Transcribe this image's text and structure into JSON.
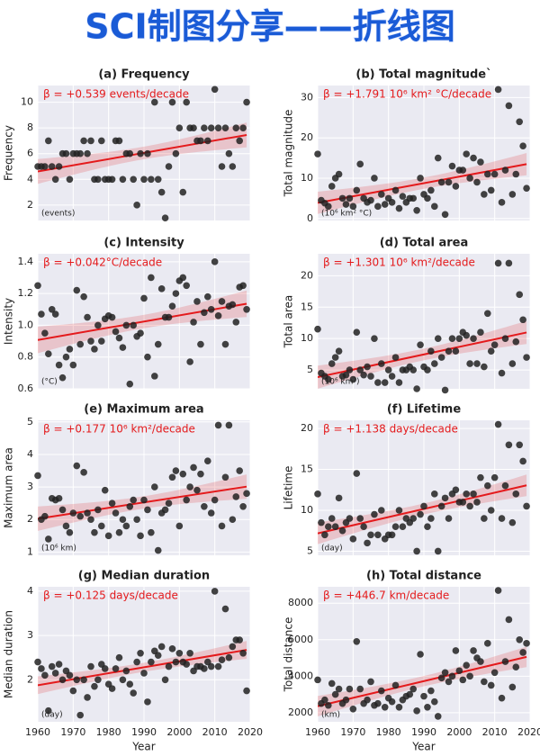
{
  "title": "SCI制图分享——折线图",
  "chart_data": [
    {
      "type": "scatter",
      "title": "(a) Frequency",
      "ylabel": "Frequency",
      "annotation": "β = +0.539 events/decade",
      "unit_note": "(events)",
      "show_xtick_labels": false,
      "color": "#222222",
      "fit_color": "#e41a1c",
      "grid": true,
      "x": [
        1960,
        1961,
        1962,
        1963,
        1964,
        1965,
        1966,
        1967,
        1968,
        1969,
        1970,
        1971,
        1972,
        1973,
        1974,
        1975,
        1976,
        1977,
        1978,
        1979,
        1980,
        1981,
        1982,
        1983,
        1984,
        1985,
        1986,
        1987,
        1988,
        1989,
        1990,
        1991,
        1992,
        1993,
        1994,
        1995,
        1996,
        1997,
        1998,
        1999,
        2000,
        2001,
        2002,
        2003,
        2004,
        2005,
        2006,
        2007,
        2008,
        2009,
        2010,
        2011,
        2012,
        2013,
        2014,
        2015,
        2016,
        2017,
        2018,
        2019
      ],
      "values": [
        5,
        5,
        5,
        7,
        5,
        4,
        5,
        6,
        6,
        4,
        6,
        6,
        6,
        7,
        6,
        7,
        4,
        4,
        7,
        4,
        4,
        4,
        7,
        7,
        4,
        6,
        6,
        4,
        2,
        6,
        4,
        6,
        4,
        10,
        4,
        3,
        1,
        5,
        10,
        6,
        8,
        3,
        10,
        8,
        8,
        7,
        7,
        8,
        7,
        8,
        11,
        8,
        5,
        8,
        6,
        5,
        8,
        7,
        8,
        10
      ],
      "xlim": [
        1960,
        2020
      ],
      "xticks": [
        1960,
        1970,
        1980,
        1990,
        2000,
        2010,
        2020
      ],
      "ylim": [
        0.8,
        11.3
      ],
      "yticks": [
        2,
        4,
        6,
        8,
        10
      ]
    },
    {
      "type": "scatter",
      "title": "(b) Total magnitude`",
      "ylabel": "Total magnitude",
      "annotation": "β = +1.791 10⁶ km² °C/decade",
      "unit_note": "(10⁶ km² °C)",
      "show_xtick_labels": false,
      "color": "#222222",
      "fit_color": "#e41a1c",
      "grid": true,
      "x": [
        1960,
        1961,
        1962,
        1963,
        1964,
        1965,
        1966,
        1967,
        1968,
        1969,
        1970,
        1971,
        1972,
        1973,
        1974,
        1975,
        1976,
        1977,
        1978,
        1979,
        1980,
        1981,
        1982,
        1983,
        1984,
        1985,
        1986,
        1987,
        1988,
        1989,
        1990,
        1991,
        1992,
        1993,
        1994,
        1995,
        1996,
        1997,
        1998,
        1999,
        2000,
        2001,
        2002,
        2003,
        2004,
        2005,
        2006,
        2007,
        2008,
        2009,
        2010,
        2011,
        2012,
        2013,
        2014,
        2015,
        2016,
        2017,
        2018,
        2019
      ],
      "values": [
        16,
        4.5,
        3.8,
        3,
        8,
        10,
        11,
        5,
        3.5,
        5,
        3,
        7,
        13.5,
        5,
        4,
        4.5,
        10,
        3,
        6,
        3.5,
        5,
        4,
        7,
        2.5,
        5.5,
        4,
        5,
        5,
        2,
        10,
        6,
        5,
        7,
        3,
        15,
        9,
        1,
        9,
        13,
        8,
        12,
        12,
        16,
        10,
        15,
        9,
        14,
        6,
        11,
        7,
        11,
        32,
        4,
        12,
        28,
        6,
        11,
        24,
        18,
        7.5
      ],
      "xlim": [
        1960,
        2020
      ],
      "xticks": [
        1960,
        1970,
        1980,
        1990,
        2000,
        2010,
        2020
      ],
      "ylim": [
        -0.5,
        33
      ],
      "yticks": [
        0,
        10,
        20,
        30
      ]
    },
    {
      "type": "scatter",
      "title": "(c) Intensity",
      "ylabel": "Intensity",
      "annotation": "β = +0.042°C/decade",
      "unit_note": "(°C)",
      "show_xtick_labels": false,
      "color": "#222222",
      "fit_color": "#e41a1c",
      "grid": true,
      "x": [
        1960,
        1961,
        1962,
        1963,
        1964,
        1965,
        1966,
        1967,
        1968,
        1969,
        1970,
        1971,
        1972,
        1973,
        1974,
        1975,
        1976,
        1977,
        1978,
        1979,
        1980,
        1981,
        1982,
        1983,
        1984,
        1985,
        1986,
        1987,
        1988,
        1989,
        1990,
        1991,
        1992,
        1993,
        1994,
        1995,
        1996,
        1997,
        1998,
        1999,
        2000,
        2001,
        2002,
        2003,
        2004,
        2005,
        2006,
        2007,
        2008,
        2009,
        2010,
        2011,
        2012,
        2013,
        2014,
        2015,
        2016,
        2017,
        2018,
        2019
      ],
      "values": [
        1.25,
        1.07,
        0.95,
        0.82,
        1.1,
        1.07,
        0.75,
        0.67,
        0.8,
        0.85,
        0.75,
        1.22,
        0.88,
        1.18,
        1.05,
        0.9,
        0.85,
        1.0,
        0.9,
        1.04,
        1.06,
        1.05,
        0.96,
        0.92,
        0.86,
        1.0,
        0.63,
        1.0,
        0.93,
        0.95,
        1.17,
        0.8,
        1.3,
        0.68,
        0.88,
        1.23,
        1.05,
        1.05,
        1.12,
        1.2,
        1.28,
        1.3,
        1.25,
        0.77,
        1.02,
        1.15,
        0.88,
        1.08,
        1.18,
        1.1,
        1.4,
        1.06,
        1.15,
        0.88,
        1.12,
        1.13,
        1.02,
        1.24,
        1.25,
        1.1
      ],
      "xlim": [
        1960,
        2020
      ],
      "xticks": [
        1960,
        1970,
        1980,
        1990,
        2000,
        2010,
        2020
      ],
      "ylim": [
        0.6,
        1.45
      ],
      "yticks": [
        0.6,
        0.8,
        {
          "value": 1,
          "label": "1.0"
        },
        1.2,
        1.4
      ]
    },
    {
      "type": "scatter",
      "title": "(d) Total area",
      "ylabel": "Total area",
      "annotation": "β = +1.301 10⁶ km²/decade",
      "unit_note": "(10⁶ km²)",
      "show_xtick_labels": false,
      "color": "#222222",
      "fit_color": "#e41a1c",
      "grid": true,
      "x": [
        1960,
        1961,
        1962,
        1963,
        1964,
        1965,
        1966,
        1967,
        1968,
        1969,
        1970,
        1971,
        1972,
        1973,
        1974,
        1975,
        1976,
        1977,
        1978,
        1979,
        1980,
        1981,
        1982,
        1983,
        1984,
        1985,
        1986,
        1987,
        1988,
        1989,
        1990,
        1991,
        1992,
        1993,
        1994,
        1995,
        1996,
        1997,
        1998,
        1999,
        2000,
        2001,
        2002,
        2003,
        2004,
        2005,
        2006,
        2007,
        2008,
        2009,
        2010,
        2011,
        2012,
        2013,
        2014,
        2015,
        2016,
        2017,
        2018,
        2019
      ],
      "values": [
        11.5,
        4.5,
        4,
        3.5,
        6,
        7,
        8,
        4,
        4.2,
        5,
        3.5,
        11,
        5,
        4.2,
        5.5,
        4,
        10,
        3,
        6,
        3,
        5,
        4,
        7,
        3,
        5,
        5,
        5.5,
        5,
        2,
        9,
        5.5,
        5,
        8,
        6,
        10,
        7,
        1.8,
        8,
        10,
        8,
        10,
        11,
        10.5,
        6,
        10,
        6,
        11,
        5.5,
        14,
        8,
        9,
        22,
        4.5,
        10,
        22,
        6,
        9.5,
        17,
        13,
        7
      ],
      "xlim": [
        1960,
        2020
      ],
      "xticks": [
        1960,
        1970,
        1980,
        1990,
        2000,
        2010,
        2020
      ],
      "ylim": [
        2,
        23.5
      ],
      "yticks": [
        5,
        10,
        15,
        20
      ]
    },
    {
      "type": "scatter",
      "title": "(e) Maximum area",
      "ylabel": "Maximum area",
      "annotation": "β = +0.177 10⁶ km²/decade",
      "unit_note": "(10⁶ km)",
      "show_xtick_labels": false,
      "color": "#222222",
      "fit_color": "#e41a1c",
      "grid": true,
      "x": [
        1960,
        1961,
        1962,
        1963,
        1964,
        1965,
        1966,
        1967,
        1968,
        1969,
        1970,
        1971,
        1972,
        1973,
        1974,
        1975,
        1976,
        1977,
        1978,
        1979,
        1980,
        1981,
        1982,
        1983,
        1984,
        1985,
        1986,
        1987,
        1988,
        1989,
        1990,
        1991,
        1992,
        1993,
        1994,
        1995,
        1996,
        1997,
        1998,
        1999,
        2000,
        2001,
        2002,
        2003,
        2004,
        2005,
        2006,
        2007,
        2008,
        2009,
        2010,
        2011,
        2012,
        2013,
        2014,
        2015,
        2016,
        2017,
        2018,
        2019
      ],
      "values": [
        3.35,
        2,
        2.1,
        1.4,
        2.65,
        2.6,
        2.65,
        2.3,
        1.8,
        1.6,
        2.2,
        3.65,
        2.1,
        3.45,
        2.2,
        2.0,
        1.6,
        2.3,
        1.8,
        2.9,
        1.5,
        2.5,
        2.2,
        1.6,
        2.0,
        1.8,
        2.4,
        2.6,
        2.0,
        1.5,
        2.6,
        2.3,
        1.6,
        3.0,
        1.05,
        2.2,
        2.3,
        2.5,
        3.3,
        3.5,
        1.8,
        3.4,
        2.6,
        3.0,
        3.6,
        2.9,
        3.4,
        2.4,
        3.8,
        2.2,
        2.6,
        4.9,
        1.8,
        3.3,
        4.9,
        2.0,
        2.7,
        3.5,
        2.4,
        2.8
      ],
      "xlim": [
        1960,
        2020
      ],
      "xticks": [
        1960,
        1970,
        1980,
        1990,
        2000,
        2010,
        2020
      ],
      "ylim": [
        0.9,
        5.05
      ],
      "yticks": [
        1,
        2,
        3,
        4,
        5
      ]
    },
    {
      "type": "scatter",
      "title": "(f) Lifetime",
      "ylabel": "Lifetime",
      "annotation": "β = +1.138 days/decade",
      "unit_note": "(day)",
      "show_xtick_labels": false,
      "color": "#222222",
      "fit_color": "#e41a1c",
      "grid": true,
      "x": [
        1960,
        1961,
        1962,
        1963,
        1964,
        1965,
        1966,
        1967,
        1968,
        1969,
        1970,
        1971,
        1972,
        1973,
        1974,
        1975,
        1976,
        1977,
        1978,
        1979,
        1980,
        1981,
        1982,
        1983,
        1984,
        1985,
        1986,
        1987,
        1988,
        1989,
        1990,
        1991,
        1992,
        1993,
        1994,
        1995,
        1996,
        1997,
        1998,
        1999,
        2000,
        2001,
        2002,
        2003,
        2004,
        2005,
        2006,
        2007,
        2008,
        2009,
        2010,
        2011,
        2012,
        2013,
        2014,
        2015,
        2016,
        2017,
        2018,
        2019
      ],
      "values": [
        12,
        8.5,
        7,
        8,
        9,
        8,
        11.5,
        7.5,
        8.5,
        9,
        6.5,
        14.5,
        9,
        8,
        6,
        7,
        9.5,
        7,
        10,
        6.5,
        7,
        7,
        8,
        10,
        8,
        9,
        8.5,
        9,
        5,
        9.5,
        10.5,
        8,
        9,
        12,
        5,
        10.5,
        11.5,
        9,
        12,
        12.5,
        11,
        11,
        12,
        10.5,
        12,
        11,
        14,
        9,
        13,
        10,
        14,
        20.5,
        9,
        13,
        18,
        8.5,
        12,
        18,
        16,
        10.5
      ],
      "xlim": [
        1960,
        2020
      ],
      "xticks": [
        1960,
        1970,
        1980,
        1990,
        2000,
        2010,
        2020
      ],
      "ylim": [
        4.5,
        21
      ],
      "yticks": [
        5,
        10,
        15,
        20
      ]
    },
    {
      "type": "scatter",
      "title": "(g) Median duration",
      "ylabel": "Median duration",
      "xlabel": "Year",
      "annotation": "β = +0.125 days/decade",
      "unit_note": "(day)",
      "show_xtick_labels": true,
      "color": "#222222",
      "fit_color": "#e41a1c",
      "grid": true,
      "x": [
        1960,
        1961,
        1962,
        1963,
        1964,
        1965,
        1966,
        1967,
        1968,
        1969,
        1970,
        1971,
        1972,
        1973,
        1974,
        1975,
        1976,
        1977,
        1978,
        1979,
        1980,
        1981,
        1982,
        1983,
        1984,
        1985,
        1986,
        1987,
        1988,
        1989,
        1990,
        1991,
        1992,
        1993,
        1994,
        1995,
        1996,
        1997,
        1998,
        1999,
        2000,
        2001,
        2002,
        2003,
        2004,
        2005,
        2006,
        2007,
        2008,
        2009,
        2010,
        2011,
        2012,
        2013,
        2014,
        2015,
        2016,
        2017,
        2018,
        2019
      ],
      "values": [
        2.4,
        2.25,
        2.1,
        1.3,
        2.3,
        2.15,
        2.35,
        2.0,
        2.2,
        2.1,
        1.75,
        2.0,
        1.2,
        2.0,
        1.6,
        2.3,
        1.85,
        2.0,
        2.35,
        2.25,
        1.9,
        1.8,
        2.25,
        2.5,
        2.0,
        2.2,
        1.9,
        1.7,
        2.4,
        2.6,
        2.15,
        1.5,
        2.4,
        2.65,
        2.55,
        2.75,
        2.0,
        2.3,
        2.7,
        2.4,
        2.6,
        2.4,
        2.35,
        2.6,
        2.2,
        2.3,
        2.3,
        2.25,
        2.4,
        2.3,
        4.0,
        2.3,
        2.45,
        3.6,
        2.5,
        2.75,
        2.9,
        2.9,
        2.6,
        1.75
      ],
      "xlim": [
        1960,
        2020
      ],
      "xticks": [
        1960,
        1970,
        1980,
        1990,
        2000,
        2010,
        2020
      ],
      "ylim": [
        1.05,
        4.1
      ],
      "yticks": [
        2,
        3,
        4
      ]
    },
    {
      "type": "scatter",
      "title": "(h) Total distance",
      "ylabel": "Total distance",
      "xlabel": "Year",
      "annotation": "β = +446.7 km/decade",
      "unit_note": "(km)",
      "show_xtick_labels": true,
      "color": "#222222",
      "fit_color": "#e41a1c",
      "grid": true,
      "x": [
        1960,
        1961,
        1962,
        1963,
        1964,
        1965,
        1966,
        1967,
        1968,
        1969,
        1970,
        1971,
        1972,
        1973,
        1974,
        1975,
        1976,
        1977,
        1978,
        1979,
        1980,
        1981,
        1982,
        1983,
        1984,
        1985,
        1986,
        1987,
        1988,
        1989,
        1990,
        1991,
        1992,
        1993,
        1994,
        1995,
        1996,
        1997,
        1998,
        1999,
        2000,
        2001,
        2002,
        2003,
        2004,
        2005,
        2006,
        2007,
        2008,
        2009,
        2010,
        2011,
        2012,
        2013,
        2014,
        2015,
        2016,
        2017,
        2018,
        2019
      ],
      "values": [
        3800,
        2500,
        2700,
        2400,
        3600,
        3000,
        3300,
        2500,
        2700,
        3300,
        2200,
        5900,
        3300,
        2500,
        2700,
        3700,
        2400,
        2500,
        3200,
        2300,
        2800,
        2600,
        3500,
        2300,
        2700,
        2900,
        3000,
        3300,
        2100,
        5200,
        2900,
        2300,
        3200,
        2600,
        1800,
        3900,
        4200,
        3700,
        4000,
        5400,
        4300,
        3800,
        4600,
        4000,
        5400,
        5000,
        4800,
        3700,
        5800,
        3500,
        4200,
        8700,
        2800,
        4800,
        7100,
        3400,
        4500,
        6000,
        5300,
        5800
      ],
      "xlim": [
        1960,
        2020
      ],
      "xticks": [
        1960,
        1970,
        1980,
        1990,
        2000,
        2010,
        2020
      ],
      "ylim": [
        1500,
        8900
      ],
      "yticks": [
        2000,
        4000,
        6000,
        8000
      ]
    }
  ]
}
